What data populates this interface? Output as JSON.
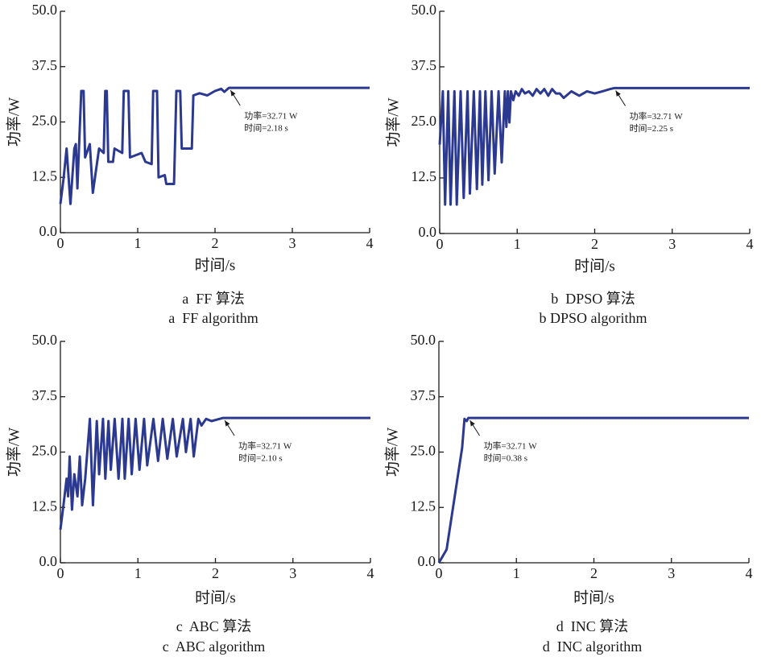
{
  "chart_data": [
    {
      "type": "line",
      "xlabel": "时间/s",
      "ylabel": "功率/W",
      "caption": [
        "a  FF 算法",
        "a  FF algorithm"
      ],
      "xlim": [
        0,
        4
      ],
      "ylim": [
        0,
        50
      ],
      "xticks": [
        0,
        1,
        2,
        3,
        4
      ],
      "yticks": [
        {
          "value": 0,
          "label": "0.0"
        },
        12.5,
        {
          "value": 25,
          "label": "25.0"
        },
        37.5,
        {
          "value": 50,
          "label": "50.0"
        }
      ],
      "color": "#2b3990",
      "x": [
        0,
        0.04,
        0.08,
        0.13,
        0.18,
        0.2,
        0.22,
        0.27,
        0.3,
        0.32,
        0.38,
        0.42,
        0.5,
        0.56,
        0.58,
        0.6,
        0.62,
        0.68,
        0.7,
        0.8,
        0.82,
        0.88,
        0.9,
        1.05,
        1.1,
        1.18,
        1.2,
        1.25,
        1.27,
        1.35,
        1.37,
        1.47,
        1.5,
        1.55,
        1.57,
        1.7,
        1.72,
        1.8,
        1.9,
        2.0,
        2.08,
        2.12,
        2.18,
        4
      ],
      "values": [
        6.5,
        12,
        19,
        6.5,
        19,
        20,
        10,
        32,
        32,
        17,
        20,
        9,
        19,
        18,
        32,
        32,
        16,
        16,
        19,
        18,
        32,
        32,
        17,
        18,
        16,
        15.5,
        32,
        32,
        12.5,
        13,
        11,
        11,
        32,
        32,
        19,
        19,
        31,
        31.5,
        31,
        32,
        32.5,
        31.8,
        32.71,
        32.71
      ],
      "annotation": {
        "lines": [
          "功率=32.71 W",
          "时间=2.18 s"
        ],
        "x": 2.18,
        "y": 32.71
      }
    },
    {
      "type": "line",
      "xlabel": "时间/s",
      "ylabel": "功率/W",
      "caption": [
        "b  DPSO 算法",
        "b DPSO algorithm"
      ],
      "xlim": [
        0,
        4
      ],
      "ylim": [
        0,
        50
      ],
      "xticks": [
        0,
        1,
        2,
        3,
        4
      ],
      "yticks": [
        {
          "value": 0,
          "label": "0.0"
        },
        12.5,
        {
          "value": 25,
          "label": "25.0"
        },
        37.5,
        {
          "value": 50,
          "label": "50.0"
        }
      ],
      "color": "#2b3990",
      "x": [
        0,
        0.04,
        0.07,
        0.11,
        0.14,
        0.19,
        0.22,
        0.27,
        0.31,
        0.36,
        0.39,
        0.44,
        0.48,
        0.52,
        0.55,
        0.59,
        0.63,
        0.67,
        0.71,
        0.76,
        0.8,
        0.84,
        0.86,
        0.88,
        0.9,
        0.92,
        0.95,
        0.98,
        1.02,
        1.06,
        1.1,
        1.15,
        1.2,
        1.25,
        1.3,
        1.35,
        1.4,
        1.45,
        1.5,
        1.55,
        1.6,
        1.7,
        1.8,
        1.9,
        2.0,
        2.1,
        2.2,
        2.25,
        4
      ],
      "values": [
        20,
        32,
        6.5,
        32,
        6.5,
        32,
        6.5,
        32,
        8,
        32,
        9,
        32,
        10,
        32,
        11,
        32,
        12,
        32,
        13.5,
        32,
        16,
        32,
        24,
        32,
        25,
        32,
        30,
        32,
        31,
        32.5,
        31.5,
        32,
        31,
        32.5,
        31.5,
        32.5,
        31,
        32.5,
        31.5,
        31.5,
        30.5,
        32,
        31,
        32,
        31.5,
        32,
        32.5,
        32.71,
        32.71
      ],
      "annotation": {
        "lines": [
          "功率=32.71 W",
          "时间=2.25 s"
        ],
        "x": 2.25,
        "y": 32.71
      }
    },
    {
      "type": "line",
      "xlabel": "时间/s",
      "ylabel": "功率/W",
      "caption": [
        "c  ABC 算法",
        "c  ABC algorithm"
      ],
      "xlim": [
        0,
        4
      ],
      "ylim": [
        0,
        50
      ],
      "xticks": [
        0,
        1,
        2,
        3,
        4
      ],
      "yticks": [
        {
          "value": 0,
          "label": "0.0"
        },
        12.5,
        {
          "value": 25,
          "label": "25.0"
        },
        37.5,
        {
          "value": 50,
          "label": "50.0"
        }
      ],
      "color": "#2b3990",
      "x": [
        0,
        0.04,
        0.08,
        0.1,
        0.12,
        0.15,
        0.18,
        0.22,
        0.25,
        0.28,
        0.32,
        0.38,
        0.42,
        0.47,
        0.5,
        0.55,
        0.58,
        0.62,
        0.65,
        0.7,
        0.75,
        0.8,
        0.83,
        0.88,
        0.92,
        0.97,
        1.02,
        1.08,
        1.12,
        1.2,
        1.26,
        1.32,
        1.38,
        1.45,
        1.5,
        1.58,
        1.62,
        1.68,
        1.72,
        1.78,
        1.82,
        1.88,
        1.95,
        2.1,
        4
      ],
      "values": [
        7.5,
        13,
        19,
        15,
        24,
        12,
        20,
        15,
        24,
        13,
        19,
        32.5,
        13,
        32,
        20,
        32.5,
        19,
        32,
        21,
        32.5,
        19,
        32.5,
        19,
        32.5,
        20,
        32.5,
        21,
        32.5,
        22,
        32.5,
        23,
        32.5,
        23.5,
        32.5,
        24,
        32.5,
        25,
        32.5,
        24,
        32.5,
        31,
        32.5,
        32,
        32.71,
        32.71
      ],
      "annotation": {
        "lines": [
          "功率=32.71 W",
          "时间=2.10 s"
        ],
        "x": 2.1,
        "y": 32.71
      }
    },
    {
      "type": "line",
      "xlabel": "时间/s",
      "ylabel": "功率/W",
      "caption": [
        "d  INC 算法",
        "d  INC algorithm"
      ],
      "xlim": [
        0,
        4
      ],
      "ylim": [
        0,
        50
      ],
      "xticks": [
        0,
        1,
        2,
        3,
        4
      ],
      "yticks": [
        {
          "value": 0,
          "label": "0.0"
        },
        12.5,
        {
          "value": 25,
          "label": "25.0"
        },
        37.5,
        {
          "value": 50,
          "label": "50.0"
        }
      ],
      "color": "#2b3990",
      "x": [
        0,
        0.1,
        0.3,
        0.33,
        0.36,
        0.38,
        4
      ],
      "values": [
        0,
        3,
        26,
        32.5,
        32,
        32.71,
        32.71
      ],
      "annotation": {
        "lines": [
          "功率=32.71 W",
          "时间=0.38 s"
        ],
        "x": 0.38,
        "y": 32.71
      }
    }
  ]
}
